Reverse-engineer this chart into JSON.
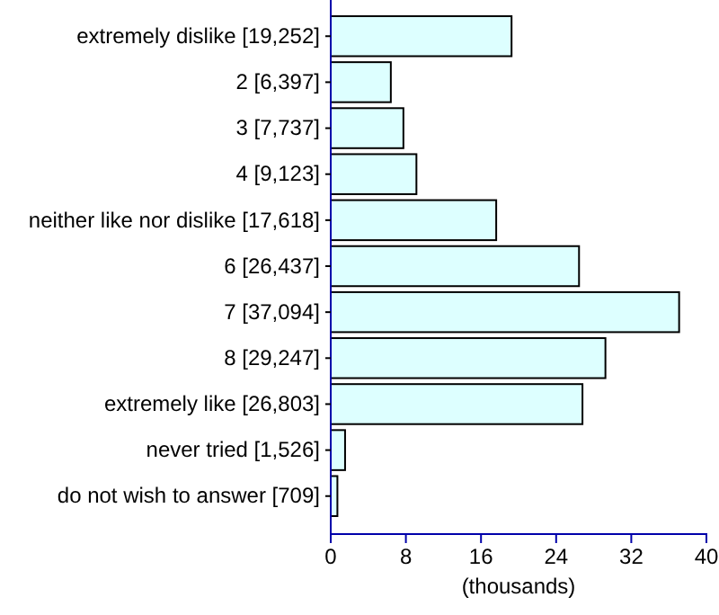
{
  "chart_data": {
    "type": "bar",
    "orientation": "horizontal",
    "xlabel": "(thousands)",
    "categories": [
      "extremely dislike [19,252]",
      "2 [6,397]",
      "3 [7,737]",
      "4 [9,123]",
      "neither like nor dislike [17,618]",
      "6 [26,437]",
      "7 [37,094]",
      "8 [29,247]",
      "extremely like [26,803]",
      "never tried [1,526]",
      "do not wish to answer [709]"
    ],
    "values": [
      19.252,
      6.397,
      7.737,
      9.123,
      17.618,
      26.437,
      37.094,
      29.247,
      26.803,
      1.526,
      0.709
    ],
    "color": "#ddffff",
    "xlim": [
      0,
      40
    ],
    "xticks": [
      0,
      8,
      16,
      24,
      32,
      40
    ]
  }
}
